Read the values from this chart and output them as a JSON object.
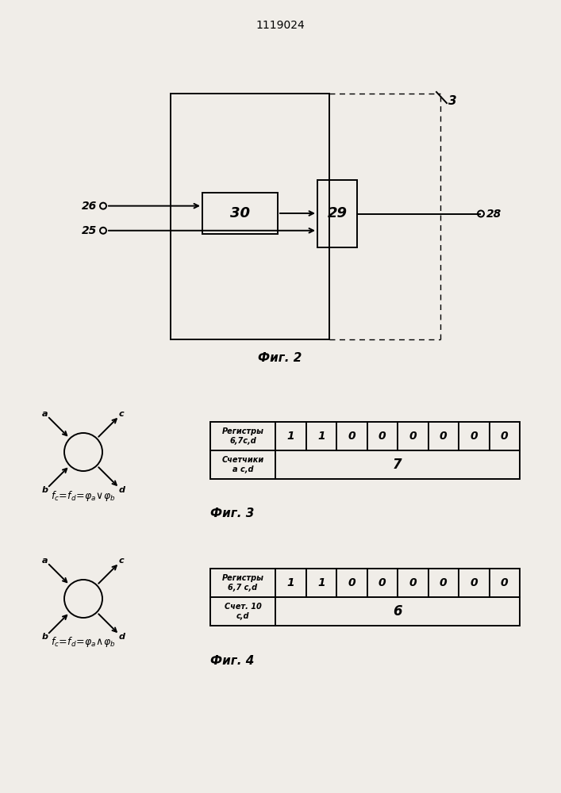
{
  "title": "1119024",
  "fig2_label": "Фиг. 2",
  "fig3_label": "Фиг. 3",
  "fig4_label": "Фиг. 4",
  "box30_label": "30",
  "box29_label": "29",
  "label_26": "26",
  "label_25": "25",
  "label_28": "28",
  "label_3": "3",
  "table3_row1_header": "Регистры\n6,7с,d",
  "table3_row1_values": [
    "1",
    "1",
    "0",
    "0",
    "0",
    "0",
    "0",
    "0"
  ],
  "table3_row2_header": "Счетчики\nа с,d",
  "table3_row2_value": "7",
  "table4_row1_header": "Регистры\n6,7 с,d",
  "table4_row1_values": [
    "1",
    "1",
    "0",
    "0",
    "0",
    "0",
    "0",
    "0"
  ],
  "table4_row2_header": "Счет. 10\nс,d",
  "table4_row2_value": "6",
  "bg_color": "#f0ede8",
  "lw_main": 1.4,
  "lw_thin": 1.0
}
